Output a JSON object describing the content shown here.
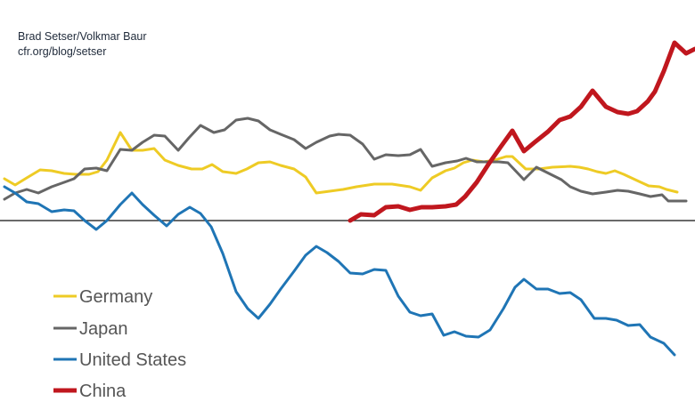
{
  "attribution": {
    "authors": "Brad Setser/Volkmar Baur",
    "source": "cfr.org/blog/setser"
  },
  "chart_data": {
    "type": "line",
    "title": "",
    "xlabel": "",
    "ylabel": "",
    "axes_shown": false,
    "zero_line": true,
    "grid": false,
    "legend_position": "bottom-left",
    "xlim": [
      0,
      78
    ],
    "ylim": [
      -22,
      25
    ],
    "series": [
      {
        "name": "Germany",
        "color": "#eecb25",
        "points": [
          [
            0.5,
            4.7
          ],
          [
            1.7,
            4.0
          ],
          [
            3.0,
            4.8
          ],
          [
            4.5,
            5.7
          ],
          [
            5.8,
            5.6
          ],
          [
            7.2,
            5.3
          ],
          [
            8.5,
            5.2
          ],
          [
            10.0,
            5.2
          ],
          [
            11.0,
            5.5
          ],
          [
            12.0,
            6.8
          ],
          [
            13.5,
            9.9
          ],
          [
            14.8,
            7.9
          ],
          [
            16.0,
            7.9
          ],
          [
            17.3,
            8.1
          ],
          [
            18.5,
            6.8
          ],
          [
            20.0,
            6.2
          ],
          [
            21.5,
            5.8
          ],
          [
            22.7,
            5.8
          ],
          [
            23.8,
            6.3
          ],
          [
            25.0,
            5.5
          ],
          [
            26.5,
            5.3
          ],
          [
            27.7,
            5.8
          ],
          [
            29.0,
            6.5
          ],
          [
            30.3,
            6.6
          ],
          [
            31.5,
            6.2
          ],
          [
            33.0,
            5.8
          ],
          [
            34.3,
            4.9
          ],
          [
            35.5,
            3.1
          ],
          [
            37.0,
            3.3
          ],
          [
            38.5,
            3.5
          ],
          [
            40.0,
            3.8
          ],
          [
            42.0,
            4.1
          ],
          [
            44.0,
            4.1
          ],
          [
            46.0,
            3.8
          ],
          [
            47.2,
            3.4
          ],
          [
            48.5,
            4.8
          ],
          [
            50.0,
            5.6
          ],
          [
            51.0,
            5.9
          ],
          [
            52.0,
            6.5
          ],
          [
            53.0,
            6.8
          ],
          [
            54.3,
            6.6
          ],
          [
            55.5,
            6.8
          ],
          [
            56.8,
            7.2
          ],
          [
            57.5,
            7.2
          ],
          [
            59.0,
            5.8
          ],
          [
            60.5,
            5.8
          ],
          [
            62.0,
            6.0
          ],
          [
            64.0,
            6.1
          ],
          [
            65.0,
            6.0
          ],
          [
            66.0,
            5.8
          ],
          [
            67.0,
            5.5
          ],
          [
            68.0,
            5.3
          ],
          [
            69.0,
            5.6
          ],
          [
            70.0,
            5.2
          ],
          [
            71.5,
            4.5
          ],
          [
            72.8,
            3.9
          ],
          [
            74.0,
            3.8
          ],
          [
            74.8,
            3.5
          ],
          [
            76.0,
            3.2
          ]
        ]
      },
      {
        "name": "Japan",
        "color": "#666666",
        "points": [
          [
            0.5,
            2.4
          ],
          [
            1.7,
            3.1
          ],
          [
            3.0,
            3.5
          ],
          [
            4.3,
            3.1
          ],
          [
            5.8,
            3.8
          ],
          [
            7.2,
            4.3
          ],
          [
            8.3,
            4.7
          ],
          [
            9.5,
            5.8
          ],
          [
            10.8,
            5.9
          ],
          [
            12.0,
            5.6
          ],
          [
            13.5,
            8.0
          ],
          [
            14.8,
            7.9
          ],
          [
            16.0,
            8.8
          ],
          [
            17.3,
            9.6
          ],
          [
            18.5,
            9.5
          ],
          [
            20.0,
            7.9
          ],
          [
            21.2,
            9.3
          ],
          [
            22.5,
            10.7
          ],
          [
            24.0,
            9.9
          ],
          [
            25.2,
            10.2
          ],
          [
            26.5,
            11.3
          ],
          [
            27.8,
            11.5
          ],
          [
            29.0,
            11.2
          ],
          [
            30.3,
            10.2
          ],
          [
            31.5,
            9.7
          ],
          [
            33.0,
            9.1
          ],
          [
            34.3,
            8.1
          ],
          [
            35.5,
            8.8
          ],
          [
            37.0,
            9.5
          ],
          [
            38.0,
            9.7
          ],
          [
            39.3,
            9.6
          ],
          [
            40.7,
            8.6
          ],
          [
            42.0,
            6.9
          ],
          [
            43.3,
            7.4
          ],
          [
            44.7,
            7.3
          ],
          [
            46.0,
            7.4
          ],
          [
            47.2,
            8.0
          ],
          [
            48.5,
            6.1
          ],
          [
            50.0,
            6.5
          ],
          [
            51.3,
            6.7
          ],
          [
            52.3,
            7.0
          ],
          [
            53.5,
            6.6
          ],
          [
            54.8,
            6.6
          ],
          [
            56.0,
            6.6
          ],
          [
            57.0,
            6.5
          ],
          [
            58.8,
            4.6
          ],
          [
            60.2,
            6.0
          ],
          [
            62.0,
            5.1
          ],
          [
            63.0,
            4.6
          ],
          [
            64.0,
            3.8
          ],
          [
            65.2,
            3.3
          ],
          [
            66.5,
            3.0
          ],
          [
            68.0,
            3.2
          ],
          [
            69.3,
            3.4
          ],
          [
            70.5,
            3.3
          ],
          [
            71.8,
            3.0
          ],
          [
            73.0,
            2.7
          ],
          [
            74.3,
            2.9
          ],
          [
            75.0,
            2.2
          ],
          [
            77.0,
            2.2
          ]
        ]
      },
      {
        "name": "United States",
        "color": "#1f75b5",
        "points": [
          [
            0.5,
            3.8
          ],
          [
            1.7,
            3.1
          ],
          [
            3.0,
            2.1
          ],
          [
            4.3,
            1.9
          ],
          [
            5.8,
            1.0
          ],
          [
            7.2,
            1.2
          ],
          [
            8.3,
            1.1
          ],
          [
            9.5,
            0
          ],
          [
            10.8,
            -1.0
          ],
          [
            12.0,
            0
          ],
          [
            13.5,
            1.8
          ],
          [
            14.8,
            3.1
          ],
          [
            16.0,
            1.8
          ],
          [
            17.3,
            0.6
          ],
          [
            18.7,
            -0.6
          ],
          [
            20.0,
            0.7
          ],
          [
            21.3,
            1.5
          ],
          [
            22.5,
            0.8
          ],
          [
            23.7,
            -0.7
          ],
          [
            25.0,
            -3.7
          ],
          [
            26.5,
            -8.0
          ],
          [
            27.8,
            -9.9
          ],
          [
            29.0,
            -11.0
          ],
          [
            30.3,
            -9.4
          ],
          [
            31.5,
            -7.7
          ],
          [
            33.0,
            -5.7
          ],
          [
            34.3,
            -3.9
          ],
          [
            35.5,
            -2.9
          ],
          [
            36.7,
            -3.6
          ],
          [
            38.0,
            -4.6
          ],
          [
            39.3,
            -5.9
          ],
          [
            40.7,
            -6.0
          ],
          [
            42.0,
            -5.5
          ],
          [
            43.3,
            -5.6
          ],
          [
            44.7,
            -8.5
          ],
          [
            46.0,
            -10.3
          ],
          [
            47.2,
            -10.7
          ],
          [
            48.5,
            -10.5
          ],
          [
            49.8,
            -12.9
          ],
          [
            51.0,
            -12.5
          ],
          [
            52.3,
            -13.0
          ],
          [
            53.7,
            -13.1
          ],
          [
            55.0,
            -12.3
          ],
          [
            56.5,
            -9.9
          ],
          [
            57.8,
            -7.5
          ],
          [
            58.8,
            -6.6
          ],
          [
            60.2,
            -7.7
          ],
          [
            61.5,
            -7.7
          ],
          [
            62.8,
            -8.2
          ],
          [
            64.0,
            -8.1
          ],
          [
            65.2,
            -8.9
          ],
          [
            66.7,
            -11.0
          ],
          [
            68.0,
            -11.0
          ],
          [
            69.2,
            -11.2
          ],
          [
            70.5,
            -11.8
          ],
          [
            71.8,
            -11.7
          ],
          [
            73.0,
            -13.1
          ],
          [
            74.5,
            -13.8
          ],
          [
            75.7,
            -15.1
          ]
        ]
      },
      {
        "name": "China",
        "color": "#c0171e",
        "points": [
          [
            39.3,
            0
          ],
          [
            40.5,
            0.7
          ],
          [
            42.0,
            0.6
          ],
          [
            43.3,
            1.5
          ],
          [
            44.7,
            1.6
          ],
          [
            46.0,
            1.2
          ],
          [
            47.3,
            1.5
          ],
          [
            48.5,
            1.5
          ],
          [
            50.0,
            1.6
          ],
          [
            51.2,
            1.8
          ],
          [
            52.2,
            2.7
          ],
          [
            53.5,
            4.3
          ],
          [
            54.8,
            6.3
          ],
          [
            56.2,
            8.3
          ],
          [
            57.5,
            10.1
          ],
          [
            58.8,
            7.8
          ],
          [
            60.0,
            8.8
          ],
          [
            61.5,
            10.0
          ],
          [
            62.8,
            11.3
          ],
          [
            64.0,
            11.7
          ],
          [
            65.2,
            12.8
          ],
          [
            66.5,
            14.6
          ],
          [
            68.0,
            12.8
          ],
          [
            69.3,
            12.2
          ],
          [
            70.5,
            12.0
          ],
          [
            71.5,
            12.3
          ],
          [
            72.7,
            13.4
          ],
          [
            73.5,
            14.5
          ],
          [
            74.5,
            16.8
          ],
          [
            75.7,
            20.0
          ],
          [
            77.0,
            18.8
          ],
          [
            78.0,
            19.3
          ]
        ]
      }
    ]
  }
}
